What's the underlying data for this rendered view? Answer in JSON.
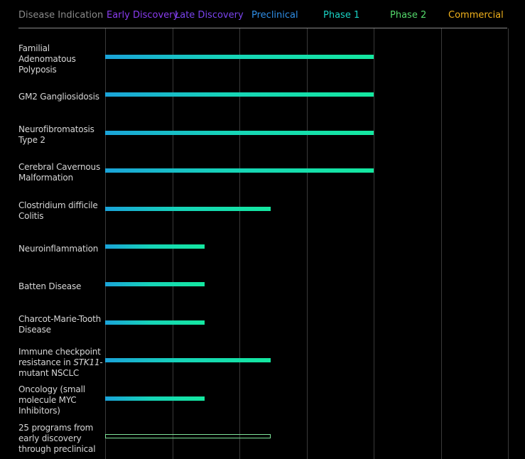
{
  "header": {
    "label_column": {
      "text": "Disease Indication",
      "color": "#8a8a8a"
    },
    "stages": [
      {
        "name": "Early Discovery",
        "color": "#8a3cf0"
      },
      {
        "name": "Late Discovery",
        "color": "#7a44ef"
      },
      {
        "name": "Preclinical",
        "color": "#2f8fe8"
      },
      {
        "name": "Phase 1",
        "color": "#19d3c5"
      },
      {
        "name": "Phase 2",
        "color": "#54d96b"
      },
      {
        "name": "Commercial",
        "color": "#f2b21c"
      }
    ]
  },
  "chart_data": {
    "type": "bar",
    "orientation": "horizontal",
    "stage_scale": [
      "Early Discovery",
      "Late Discovery",
      "Preclinical",
      "Phase 1",
      "Phase 2",
      "Commercial"
    ],
    "xlim": [
      0,
      6
    ],
    "programs": [
      {
        "label": "Familial Adenomatous Polyposis",
        "progress": 4.0
      },
      {
        "label": "GM2 Gangliosidosis",
        "progress": 4.0
      },
      {
        "label": "Neurofibromatosis Type 2",
        "progress": 4.0
      },
      {
        "label": "Cerebral Cavernous Malformation",
        "progress": 4.0
      },
      {
        "label": "Clostridium difficile Colitis",
        "progress": 2.47
      },
      {
        "label": "Neuroinflammation",
        "progress": 1.48
      },
      {
        "label": "Batten Disease",
        "progress": 1.48
      },
      {
        "label": "Charcot-Marie-Tooth Disease",
        "progress": 1.48
      },
      {
        "label_prefix": "Immune checkpoint resistance in ",
        "label_italic": "STK11",
        "label_suffix": "-mutant NSCLC",
        "progress": 2.47
      },
      {
        "label": "Oncology (small molecule MYC Inhibitors)",
        "progress": 1.48
      },
      {
        "label": "25 programs from early discovery through preclinical",
        "progress": 2.47,
        "style": "outline"
      }
    ],
    "bar_gradient": [
      "#1aa3d9",
      "#14e8a0"
    ],
    "outline_color": "#7fe59a"
  }
}
